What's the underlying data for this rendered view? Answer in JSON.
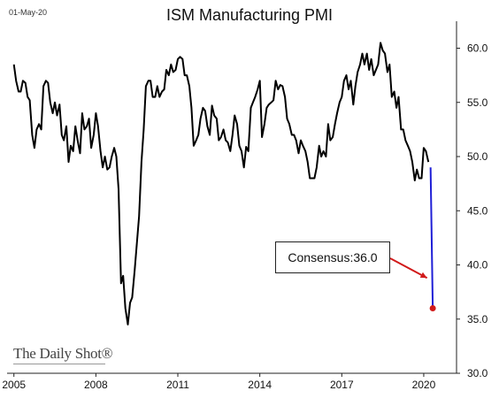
{
  "date_stamp": "01-May-20",
  "brand": "The Daily Shot®",
  "chart_data": {
    "type": "line",
    "title": "ISM Manufacturing PMI",
    "xlabel": "",
    "ylabel": "",
    "xlim": [
      2004.75,
      2021.2
    ],
    "ylim": [
      30,
      62
    ],
    "x_ticks": [
      "2005",
      "2008",
      "2011",
      "2014",
      "2017",
      "2020"
    ],
    "y_ticks": [
      "60.0",
      "55.0",
      "50.0",
      "45.0",
      "40.0",
      "35.0",
      "30.0"
    ],
    "grid": false,
    "colors": {
      "line": "#000000",
      "projection": "#1f1fd6",
      "marker": "#d11a1a",
      "arrow": "#d11a1a"
    },
    "series": [
      {
        "x": [
          2005.0,
          2005.08,
          2005.17,
          2005.25,
          2005.33,
          2005.42,
          2005.5,
          2005.58,
          2005.67,
          2005.75,
          2005.83,
          2005.92,
          2006.0,
          2006.08,
          2006.17,
          2006.25,
          2006.33,
          2006.42,
          2006.5,
          2006.58,
          2006.67,
          2006.75,
          2006.83,
          2006.92,
          2007.0,
          2007.08,
          2007.17,
          2007.25,
          2007.33,
          2007.42,
          2007.5,
          2007.58,
          2007.67,
          2007.75,
          2007.83,
          2007.92,
          2008.0,
          2008.08,
          2008.17,
          2008.25,
          2008.33,
          2008.42,
          2008.5,
          2008.58,
          2008.67,
          2008.75,
          2008.83,
          2008.92,
          2009.0,
          2009.08,
          2009.17,
          2009.25,
          2009.33,
          2009.42,
          2009.5,
          2009.58,
          2009.67,
          2009.75,
          2009.83,
          2009.92,
          2010.0,
          2010.08,
          2010.17,
          2010.25,
          2010.33,
          2010.42,
          2010.5,
          2010.58,
          2010.67,
          2010.75,
          2010.83,
          2010.92,
          2011.0,
          2011.08,
          2011.17,
          2011.25,
          2011.33,
          2011.42,
          2011.5,
          2011.58,
          2011.67,
          2011.75,
          2011.83,
          2011.92,
          2012.0,
          2012.08,
          2012.17,
          2012.25,
          2012.33,
          2012.42,
          2012.5,
          2012.58,
          2012.67,
          2012.75,
          2012.83,
          2012.92,
          2013.0,
          2013.08,
          2013.17,
          2013.25,
          2013.33,
          2013.42,
          2013.5,
          2013.58,
          2013.67,
          2013.75,
          2013.83,
          2013.92,
          2014.0,
          2014.08,
          2014.17,
          2014.25,
          2014.33,
          2014.42,
          2014.5,
          2014.58,
          2014.67,
          2014.75,
          2014.83,
          2014.92,
          2015.0,
          2015.08,
          2015.17,
          2015.25,
          2015.33,
          2015.42,
          2015.5,
          2015.58,
          2015.67,
          2015.75,
          2015.83,
          2015.92,
          2016.0,
          2016.08,
          2016.17,
          2016.25,
          2016.33,
          2016.42,
          2016.5,
          2016.58,
          2016.67,
          2016.75,
          2016.83,
          2016.92,
          2017.0,
          2017.08,
          2017.17,
          2017.25,
          2017.33,
          2017.42,
          2017.5,
          2017.58,
          2017.67,
          2017.75,
          2017.83,
          2017.92,
          2018.0,
          2018.08,
          2018.17,
          2018.25,
          2018.33,
          2018.42,
          2018.5,
          2018.58,
          2018.67,
          2018.75,
          2018.83,
          2018.92,
          2019.0,
          2019.08,
          2019.17,
          2019.25,
          2019.33,
          2019.42,
          2019.5,
          2019.58,
          2019.67,
          2019.75,
          2019.83,
          2019.92,
          2020.0,
          2020.08,
          2020.17
        ],
        "y": [
          58.5,
          57.0,
          56.0,
          56.0,
          57.0,
          56.8,
          55.5,
          55.2,
          52.0,
          50.8,
          52.5,
          53.0,
          52.5,
          56.5,
          57.0,
          56.8,
          55.0,
          54.0,
          55.0,
          53.8,
          54.8,
          52.0,
          51.5,
          52.8,
          49.5,
          51.0,
          50.5,
          52.8,
          51.5,
          50.3,
          54.0,
          52.5,
          52.8,
          53.5,
          50.8,
          52.0,
          54.0,
          52.8,
          50.5,
          49.0,
          50.0,
          48.8,
          49.0,
          50.0,
          50.8,
          50.0,
          47.0,
          38.3,
          39.0,
          36.0,
          34.5,
          36.5,
          37.0,
          39.5,
          42.0,
          44.5,
          49.5,
          52.5,
          56.5,
          57.0,
          57.0,
          55.5,
          55.5,
          56.5,
          55.5,
          56.0,
          56.2,
          58.0,
          57.5,
          58.5,
          57.8,
          58.0,
          59.0,
          59.2,
          59.0,
          57.5,
          57.5,
          56.5,
          54.5,
          51.0,
          51.5,
          52.0,
          53.5,
          54.5,
          54.2,
          52.8,
          52.0,
          54.7,
          53.8,
          53.5,
          51.5,
          51.8,
          52.5,
          51.5,
          51.3,
          50.5,
          52.0,
          53.8,
          53.0,
          51.0,
          50.5,
          49.0,
          50.9,
          50.5,
          54.5,
          55.0,
          55.5,
          56.2,
          57.0,
          51.8,
          53.0,
          54.5,
          54.8,
          55.0,
          55.2,
          57.0,
          56.2,
          56.6,
          56.5,
          55.5,
          53.5,
          53.0,
          52.0,
          52.0,
          51.5,
          50.3,
          51.5,
          51.0,
          50.5,
          49.5,
          48.0,
          48.0,
          48.0,
          49.0,
          51.0,
          50.0,
          50.5,
          50.0,
          53.0,
          51.5,
          51.8,
          53.0,
          54.0,
          55.0,
          55.5,
          57.0,
          57.5,
          56.2,
          57.0,
          54.8,
          56.5,
          57.8,
          58.5,
          59.5,
          58.5,
          59.5,
          58.0,
          59.0,
          57.5,
          58.0,
          58.5,
          60.5,
          59.8,
          59.5,
          57.8,
          58.5,
          55.5,
          56.0,
          54.5,
          55.5,
          52.5,
          52.5,
          51.5,
          51.0,
          50.5,
          49.5,
          47.8,
          48.8,
          48.0,
          48.0,
          50.8,
          50.5,
          49.5
        ]
      }
    ],
    "projection": {
      "x": [
        2020.25,
        2020.33
      ],
      "y": [
        49.0,
        36.0
      ]
    },
    "annotation": {
      "label": "Consensus:",
      "value": "36.0",
      "arrow_to": {
        "x": 2020.25,
        "y": 38.8
      }
    }
  }
}
